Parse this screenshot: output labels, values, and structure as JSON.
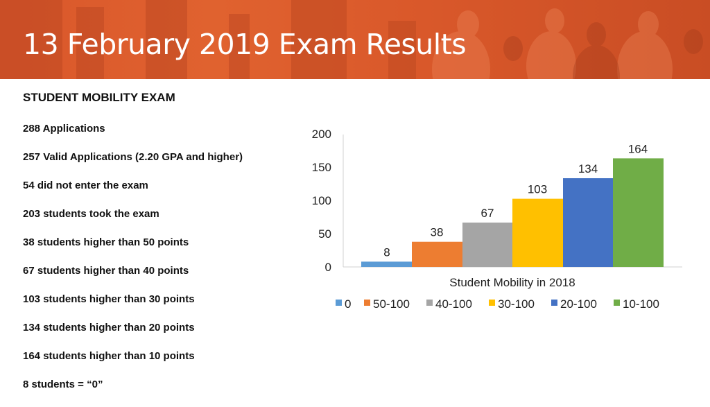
{
  "slide": {
    "title": "13 February 2019 Exam Results",
    "subtitle": "STUDENT MOBILITY EXAM"
  },
  "stats": [
    "288 Applications",
    "257 Valid Applications (2.20 GPA and higher)",
    "54 did not enter the exam",
    "203 students took the exam",
    "38 students higher than 50 points",
    "67 students higher than 40 points",
    "103 students higher than 30 points",
    "134 students higher than 20 points",
    "164 students higher than 10 points",
    "8 students = “0”"
  ],
  "chart_data": {
    "type": "bar",
    "xlabel": "Student Mobility in 2018",
    "ylabel": "",
    "ylim": [
      0,
      200
    ],
    "yticks": [
      "0",
      "50",
      "100",
      "150",
      "200"
    ],
    "grid": false,
    "legend_position": "bottom",
    "series": [
      {
        "name": "0",
        "value": 8,
        "color": "#5b9bd5"
      },
      {
        "name": "50-100",
        "value": 38,
        "color": "#ed7d31"
      },
      {
        "name": "40-100",
        "value": 67,
        "color": "#a5a5a5"
      },
      {
        "name": "30-100",
        "value": 103,
        "color": "#ffc000"
      },
      {
        "name": "20-100",
        "value": 134,
        "color": "#4472c4"
      },
      {
        "name": "10-100",
        "value": 164,
        "color": "#70ad47"
      }
    ]
  }
}
